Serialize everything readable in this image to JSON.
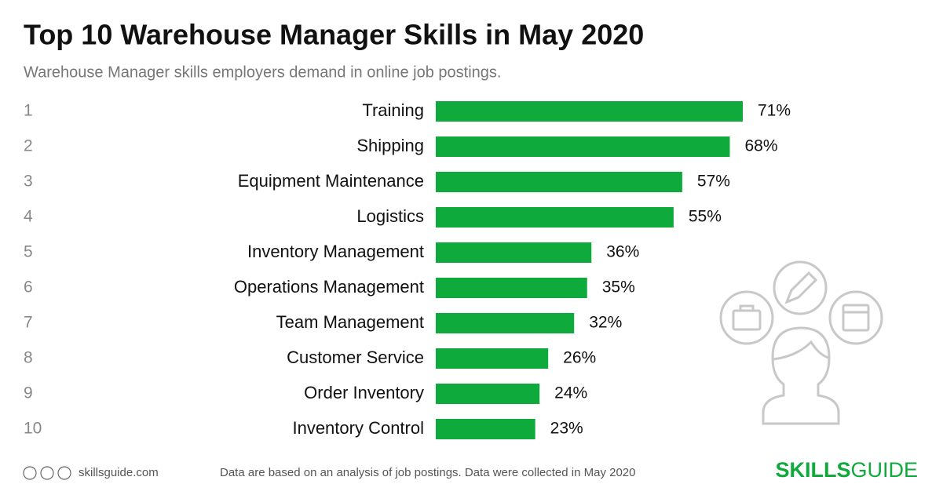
{
  "chart_data": {
    "type": "bar",
    "orientation": "horizontal",
    "title": "Top 10 Warehouse Manager Skills in May 2020",
    "subtitle": "Warehouse Manager skills employers demand in online job postings.",
    "ranks": [
      1,
      2,
      3,
      4,
      5,
      6,
      7,
      8,
      9,
      10
    ],
    "categories": [
      "Training",
      "Shipping",
      "Equipment Maintenance",
      "Logistics",
      "Inventory Management",
      "Operations Management",
      "Team Management",
      "Customer Service",
      "Order Inventory",
      "Inventory Control"
    ],
    "values": [
      71,
      68,
      57,
      55,
      36,
      35,
      32,
      26,
      24,
      23
    ],
    "value_labels": [
      "71%",
      "68%",
      "57%",
      "55%",
      "36%",
      "35%",
      "32%",
      "26%",
      "24%",
      "23%"
    ],
    "color": "#0eaa3b"
  },
  "footer": {
    "site": "skillsguide.com",
    "note": "Data are based on an analysis of job postings. Data were collected in May 2020",
    "brand_bold": "SKILLS",
    "brand_light": "GUIDE"
  }
}
